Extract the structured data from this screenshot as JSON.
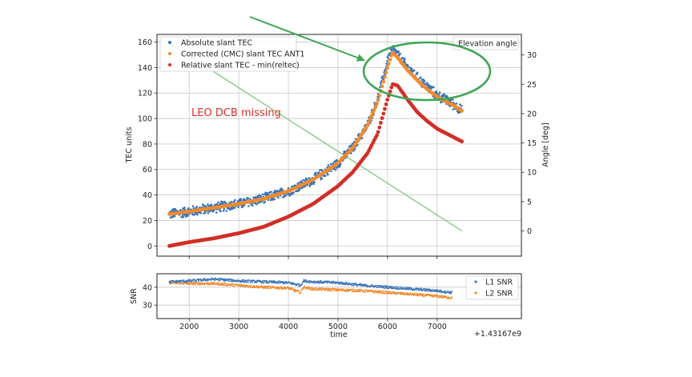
{
  "chart_data": [
    {
      "type": "scatter",
      "xlabel": "",
      "ylabel": "TEC units",
      "y2label": "Angle [deg]",
      "xlim": [
        1350,
        8700
      ],
      "ylim": [
        -8,
        166
      ],
      "y2lim": [
        -4.3,
        33.5
      ],
      "xticks": [
        2000,
        3000,
        4000,
        5000,
        6000,
        7000
      ],
      "yticks": [
        0,
        20,
        40,
        60,
        80,
        100,
        120,
        140,
        160
      ],
      "y2ticks": [
        0,
        5,
        10,
        15,
        20,
        25,
        30
      ],
      "legend_position": "top-left",
      "series": [
        {
          "name": "Absolute slant TEC",
          "color": "#3b75b8",
          "noise": 4.5,
          "x": [
            1600,
            2000,
            2500,
            3000,
            3500,
            4000,
            4500,
            5000,
            5300,
            5600,
            5800,
            6000,
            6100,
            6200,
            6400,
            6600,
            6800,
            7000,
            7300,
            7500
          ],
          "y": [
            25,
            27,
            30,
            33,
            37,
            43,
            52,
            65,
            77,
            95,
            115,
            145,
            155,
            150,
            140,
            132,
            125,
            118,
            112,
            106
          ]
        },
        {
          "name": "Corrected (CMC) slant TEC ANT1",
          "color": "#f28a2c",
          "noise": 0,
          "x": [
            1600,
            2000,
            2500,
            3000,
            3500,
            4000,
            4500,
            5000,
            5300,
            5600,
            5800,
            6000,
            6100,
            6200,
            6400,
            6600,
            6800,
            7000,
            7300,
            7500
          ],
          "y": [
            25,
            27,
            30,
            33,
            37,
            43,
            52,
            65,
            77,
            95,
            113,
            140,
            152,
            148,
            138,
            130,
            123,
            117,
            111,
            106
          ]
        },
        {
          "name": "Relative slant TEC - min(reltec)",
          "color": "#d12f26",
          "noise": 0,
          "x": [
            1600,
            2000,
            2500,
            3000,
            3500,
            4000,
            4500,
            5000,
            5300,
            5600,
            5800,
            6000,
            6100,
            6200,
            6400,
            6600,
            6800,
            7000,
            7300,
            7500
          ],
          "y": [
            0,
            3,
            6,
            10,
            15,
            23,
            33,
            47,
            58,
            73,
            88,
            115,
            127,
            126,
            115,
            105,
            98,
            92,
            86,
            82
          ]
        }
      ],
      "elevation_series": {
        "name": "Elevation angle",
        "color": "#7fc77f",
        "axis": "right",
        "x": [
          1600,
          7500
        ],
        "y": [
          32,
          0
        ]
      },
      "annotation": "LEO DCB missing"
    },
    {
      "type": "scatter",
      "xlabel": "time",
      "ylabel": "SNR",
      "x_offset_label": "+1.43167e9",
      "xlim": [
        1350,
        8700
      ],
      "ylim": [
        22.5,
        47.5
      ],
      "xticks": [
        2000,
        3000,
        4000,
        5000,
        6000,
        7000
      ],
      "yticks": [
        30,
        40
      ],
      "legend_position": "top-right",
      "series": [
        {
          "name": "L1 SNR",
          "color": "#3b75b8",
          "noise": 0.7,
          "x": [
            1600,
            2000,
            2500,
            3000,
            3500,
            4000,
            4250,
            4300,
            4500,
            5000,
            5500,
            6000,
            6500,
            7000,
            7300
          ],
          "y": [
            43,
            43.5,
            44.5,
            43.5,
            43,
            42.5,
            41,
            43.5,
            43,
            42.5,
            41,
            40,
            39,
            38,
            37
          ]
        },
        {
          "name": "L2 SNR",
          "color": "#f28a2c",
          "noise": 0.7,
          "x": [
            1600,
            2000,
            2500,
            3000,
            3500,
            4000,
            4250,
            4300,
            4500,
            5000,
            5500,
            6000,
            6500,
            7000,
            7300
          ],
          "y": [
            42.5,
            42,
            42,
            41,
            40,
            39.5,
            37,
            40,
            39,
            38.5,
            38,
            37,
            36,
            35,
            34
          ]
        }
      ]
    }
  ],
  "arrow": {
    "color": "#3fa655"
  },
  "highlight_ellipse": {
    "color": "#3fa655"
  }
}
